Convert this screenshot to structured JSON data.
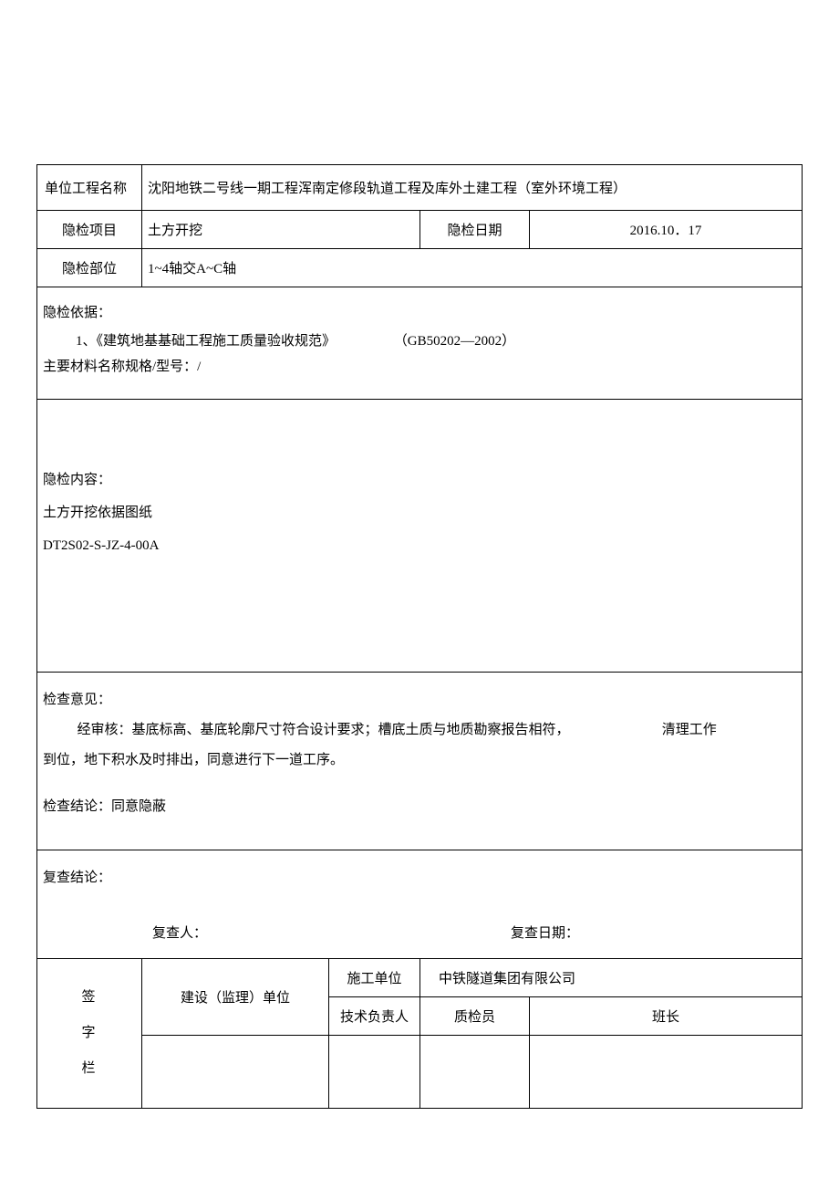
{
  "header": {
    "project_name_label": "单位工程名称",
    "project_name_value": "沈阳地铁二号线一期工程浑南定修段轨道工程及库外土建工程（室外环境工程）",
    "item_label": "隐检项目",
    "item_value": "土方开挖",
    "date_label": "隐检日期",
    "date_value": "2016.10．17",
    "part_label": "隐检部位",
    "part_value": "1~4轴交A~C轴"
  },
  "basis": {
    "title": "隐检依据：",
    "line": "1、《建筑地基基础工程施工质量验收规范》",
    "gb": "（GB50202—2002）",
    "material": "主要材料名称规格/型号：/"
  },
  "content": {
    "title": "隐检内容：",
    "line1": "土方开挖依据图纸",
    "line2": "DT2S02-S-JZ-4-00A"
  },
  "opinion": {
    "title": "检查意见：",
    "body_a": "经审核：基底标高、基底轮廓尺寸符合设计要求；槽底土质与地质勘察报告相符，",
    "body_b": "清理工作",
    "body_c": "到位，地下积水及时排出，同意进行下一道工序。",
    "conclusion": "检查结论：同意隐蔽"
  },
  "review": {
    "title": "复查结论：",
    "person_label": "复查人：",
    "date_label": "复查日期："
  },
  "sign": {
    "column_label": "签字栏",
    "supervise_label": "建设（监理）单位",
    "construct_label": "施工单位",
    "construct_name": "中铁隧道集团有限公司",
    "tech_leader": "技术负责人",
    "qc": "质检员",
    "foreman": "班长"
  }
}
